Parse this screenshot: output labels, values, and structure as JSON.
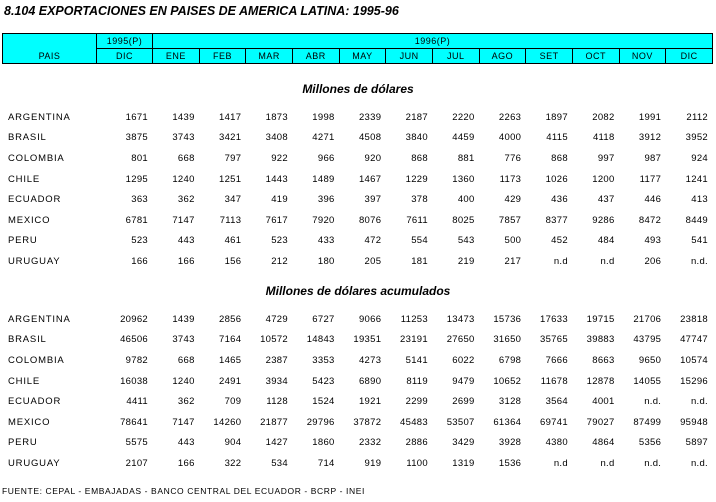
{
  "title": "8.104  EXPORTACIONES EN PAISES DE AMERICA LATINA: 1995-96",
  "header": {
    "year1": "1995(P)",
    "year2": "1996(P)",
    "pais": "PAIS",
    "months": [
      "DIC",
      "ENE",
      "FEB",
      "MAR",
      "ABR",
      "MAY",
      "JUN",
      "JUL",
      "AGO",
      "SET",
      "OCT",
      "NOV",
      "DIC"
    ]
  },
  "section1": {
    "title": "Millones de dólares",
    "rows": [
      {
        "country": "ARGENTINA",
        "values": [
          "1671",
          "1439",
          "1417",
          "1873",
          "1998",
          "2339",
          "2187",
          "2220",
          "2263",
          "1897",
          "2082",
          "1991",
          "2112"
        ]
      },
      {
        "country": "BRASIL",
        "values": [
          "3875",
          "3743",
          "3421",
          "3408",
          "4271",
          "4508",
          "3840",
          "4459",
          "4000",
          "4115",
          "4118",
          "3912",
          "3952"
        ]
      },
      {
        "country": "COLOMBIA",
        "values": [
          "801",
          "668",
          "797",
          "922",
          "966",
          "920",
          "868",
          "881",
          "776",
          "868",
          "997",
          "987",
          "924"
        ]
      },
      {
        "country": "CHILE",
        "values": [
          "1295",
          "1240",
          "1251",
          "1443",
          "1489",
          "1467",
          "1229",
          "1360",
          "1173",
          "1026",
          "1200",
          "1177",
          "1241"
        ]
      },
      {
        "country": "ECUADOR",
        "values": [
          "363",
          "362",
          "347",
          "419",
          "396",
          "397",
          "378",
          "400",
          "429",
          "436",
          "437",
          "446",
          "413"
        ]
      },
      {
        "country": "MEXICO",
        "values": [
          "6781",
          "7147",
          "7113",
          "7617",
          "7920",
          "8076",
          "7611",
          "8025",
          "7857",
          "8377",
          "9286",
          "8472",
          "8449"
        ]
      },
      {
        "country": "PERU",
        "values": [
          "523",
          "443",
          "461",
          "523",
          "433",
          "472",
          "554",
          "543",
          "500",
          "452",
          "484",
          "493",
          "541"
        ]
      },
      {
        "country": "URUGUAY",
        "values": [
          "166",
          "166",
          "156",
          "212",
          "180",
          "205",
          "181",
          "219",
          "217",
          "n.d",
          "n.d",
          "206",
          "n.d."
        ]
      }
    ]
  },
  "section2": {
    "title": "Millones de dólares acumulados",
    "rows": [
      {
        "country": "ARGENTINA",
        "values": [
          "20962",
          "1439",
          "2856",
          "4729",
          "6727",
          "9066",
          "11253",
          "13473",
          "15736",
          "17633",
          "19715",
          "21706",
          "23818"
        ]
      },
      {
        "country": "BRASIL",
        "values": [
          "46506",
          "3743",
          "7164",
          "10572",
          "14843",
          "19351",
          "23191",
          "27650",
          "31650",
          "35765",
          "39883",
          "43795",
          "47747"
        ]
      },
      {
        "country": "COLOMBIA",
        "values": [
          "9782",
          "668",
          "1465",
          "2387",
          "3353",
          "4273",
          "5141",
          "6022",
          "6798",
          "7666",
          "8663",
          "9650",
          "10574"
        ]
      },
      {
        "country": "CHILE",
        "values": [
          "16038",
          "1240",
          "2491",
          "3934",
          "5423",
          "6890",
          "8119",
          "9479",
          "10652",
          "11678",
          "12878",
          "14055",
          "15296"
        ]
      },
      {
        "country": "ECUADOR",
        "values": [
          "4411",
          "362",
          "709",
          "1128",
          "1524",
          "1921",
          "2299",
          "2699",
          "3128",
          "3564",
          "4001",
          "n.d.",
          "n.d."
        ]
      },
      {
        "country": "MEXICO",
        "values": [
          "78641",
          "7147",
          "14260",
          "21877",
          "29796",
          "37872",
          "45483",
          "53507",
          "61364",
          "69741",
          "79027",
          "87499",
          "95948"
        ]
      },
      {
        "country": "PERU",
        "values": [
          "5575",
          "443",
          "904",
          "1427",
          "1860",
          "2332",
          "2886",
          "3429",
          "3928",
          "4380",
          "4864",
          "5356",
          "5897"
        ]
      },
      {
        "country": "URUGUAY",
        "values": [
          "2107",
          "166",
          "322",
          "534",
          "714",
          "919",
          "1100",
          "1319",
          "1536",
          "n.d",
          "n.d",
          "n.d.",
          "n.d."
        ]
      }
    ]
  },
  "footer": "FUENTE: CEPAL - EMBAJADAS - BANCO CENTRAL DEL ECUADOR - BCRP - INEI"
}
